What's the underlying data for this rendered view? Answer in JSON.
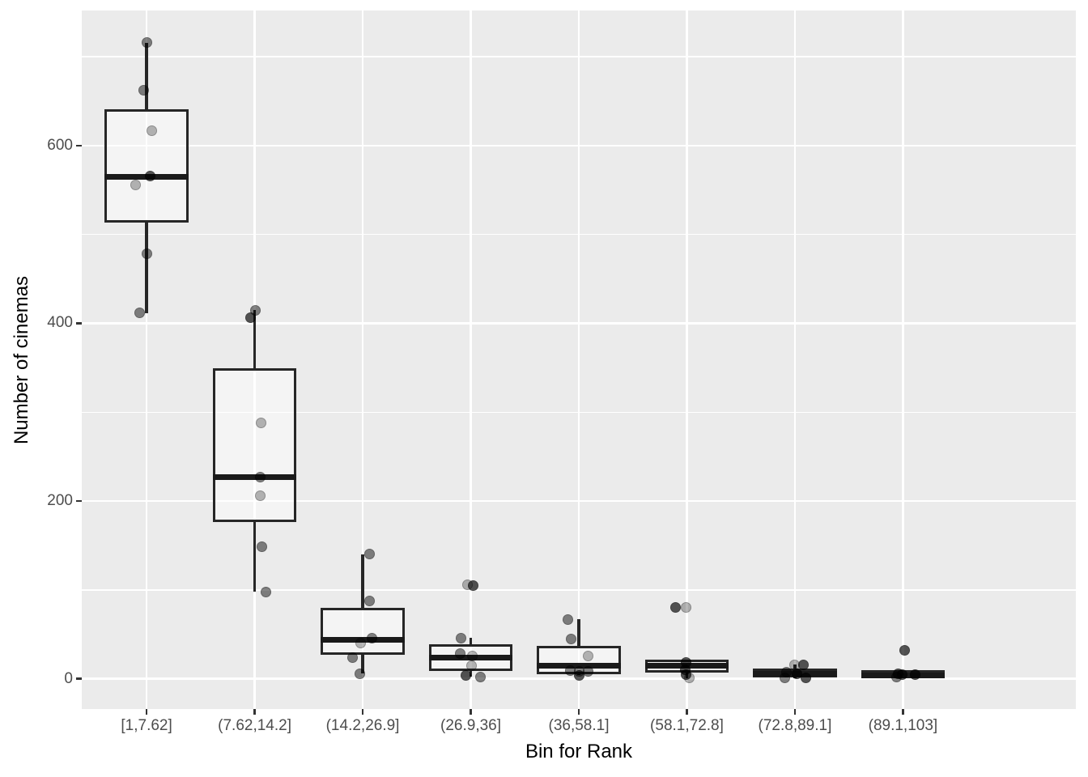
{
  "style": {
    "figure_background": "#FFFFFF",
    "panel_background": "#EBEBEB",
    "grid_color": "#FFFFFF",
    "axis_text_color": "#4D4D4D",
    "axis_title_color": "#000000",
    "box_border_color": "#262626",
    "median_color": "#1A1A1A",
    "box_fill": "rgba(255,255,255,0.45)",
    "point_color": "#000000"
  },
  "chart_data": {
    "type": "boxplot",
    "title": "",
    "xlabel": "Bin for Rank",
    "ylabel": "Number of cinemas",
    "legend": "none",
    "grid": "on",
    "ylim": [
      -34,
      752
    ],
    "yticks": [
      0,
      200,
      400,
      600
    ],
    "ytick_labels": [
      "0",
      "200",
      "400",
      "600"
    ],
    "yminor": [
      100,
      300,
      500,
      700
    ],
    "categories": [
      "[1,7.62]",
      "(7.62,14.2]",
      "(14.2,26.9]",
      "(26.9,36]",
      "(36,58.1]",
      "(58.1,72.8]",
      "(72.8,89.1]",
      "(89.1,103]"
    ],
    "boxes": [
      {
        "category": "[1,7.62]",
        "whisker_low": 411,
        "q1": 515,
        "median": 565,
        "q3": 639,
        "whisker_high": 716,
        "points": [
          {
            "value": 716,
            "dx": 0,
            "shade": "m"
          },
          {
            "value": 662,
            "dx": -4,
            "shade": "m"
          },
          {
            "value": 617,
            "dx": 6,
            "shade": "l"
          },
          {
            "value": 566,
            "dx": 4,
            "shade": "d"
          },
          {
            "value": 556,
            "dx": -14,
            "shade": "l"
          },
          {
            "value": 478,
            "dx": 0,
            "shade": "m"
          },
          {
            "value": 412,
            "dx": -9,
            "shade": "m"
          }
        ]
      },
      {
        "category": "(7.62,14.2]",
        "whisker_low": 98,
        "q1": 178,
        "median": 227,
        "q3": 348,
        "whisker_high": 415,
        "points": [
          {
            "value": 415,
            "dx": 1,
            "shade": "m"
          },
          {
            "value": 406,
            "dx": -5,
            "shade": "d"
          },
          {
            "value": 288,
            "dx": 8,
            "shade": "l"
          },
          {
            "value": 227,
            "dx": 7,
            "shade": "m"
          },
          {
            "value": 206,
            "dx": 7,
            "shade": "l"
          },
          {
            "value": 149,
            "dx": 9,
            "shade": "m"
          },
          {
            "value": 98,
            "dx": 14,
            "shade": "m"
          }
        ]
      },
      {
        "category": "(14.2,26.9]",
        "whisker_low": 6,
        "q1": 29,
        "median": 44,
        "q3": 78,
        "whisker_high": 140,
        "points": [
          {
            "value": 140,
            "dx": 8,
            "shade": "m"
          },
          {
            "value": 88,
            "dx": 8,
            "shade": "m"
          },
          {
            "value": 46,
            "dx": 11,
            "shade": "m"
          },
          {
            "value": 40,
            "dx": -3,
            "shade": "l"
          },
          {
            "value": 24,
            "dx": -13,
            "shade": "m"
          },
          {
            "value": 6,
            "dx": -4,
            "shade": "m"
          }
        ]
      },
      {
        "category": "(26.9,36]",
        "whisker_low": 2,
        "q1": 10,
        "median": 24,
        "q3": 37,
        "whisker_high": 46,
        "points": [
          {
            "value": 106,
            "dx": -4,
            "shade": "l"
          },
          {
            "value": 105,
            "dx": 3,
            "shade": "d"
          },
          {
            "value": 46,
            "dx": -12,
            "shade": "m"
          },
          {
            "value": 28,
            "dx": -13,
            "shade": "m"
          },
          {
            "value": 26,
            "dx": 2,
            "shade": "l"
          },
          {
            "value": 15,
            "dx": 1,
            "shade": "l"
          },
          {
            "value": 4,
            "dx": -6,
            "shade": "d"
          },
          {
            "value": 2,
            "dx": 12,
            "shade": "m"
          }
        ]
      },
      {
        "category": "(36,58.1]",
        "whisker_low": 4,
        "q1": 7,
        "median": 15,
        "q3": 35,
        "whisker_high": 67,
        "points": [
          {
            "value": 67,
            "dx": -14,
            "shade": "m"
          },
          {
            "value": 45,
            "dx": -10,
            "shade": "m"
          },
          {
            "value": 26,
            "dx": 11,
            "shade": "l"
          },
          {
            "value": 9,
            "dx": -11,
            "shade": "m"
          },
          {
            "value": 8,
            "dx": 0,
            "shade": "m"
          },
          {
            "value": 8,
            "dx": 11,
            "shade": "m"
          },
          {
            "value": 4,
            "dx": 0,
            "shade": "d"
          }
        ]
      },
      {
        "category": "(58.1,72.8]",
        "whisker_low": 1,
        "q1": 9,
        "median": 15,
        "q3": 20,
        "whisker_high": 20,
        "points": [
          {
            "value": 80,
            "dx": -14,
            "shade": "d"
          },
          {
            "value": 80,
            "dx": -1,
            "shade": "l"
          },
          {
            "value": 18,
            "dx": -1,
            "shade": "d"
          },
          {
            "value": 10,
            "dx": -2,
            "shade": "d"
          },
          {
            "value": 5,
            "dx": -1,
            "shade": "d"
          },
          {
            "value": 1,
            "dx": 3,
            "shade": "l"
          }
        ]
      },
      {
        "category": "(72.8,89.1]",
        "whisker_low": 1,
        "q1": 3,
        "median": 6,
        "q3": 10,
        "whisker_high": 16,
        "points": [
          {
            "value": 16,
            "dx": 0,
            "shade": "l"
          },
          {
            "value": 16,
            "dx": 11,
            "shade": "d"
          },
          {
            "value": 7,
            "dx": -10,
            "shade": "m"
          },
          {
            "value": 6,
            "dx": 3,
            "shade": "d"
          },
          {
            "value": 1,
            "dx": -12,
            "shade": "m"
          },
          {
            "value": 1,
            "dx": 14,
            "shade": "d"
          }
        ]
      },
      {
        "category": "(89.1,103]",
        "whisker_low": 1,
        "q1": 2,
        "median": 4,
        "q3": 8,
        "whisker_high": 8,
        "points": [
          {
            "value": 32,
            "dx": 2,
            "shade": "d"
          },
          {
            "value": 6,
            "dx": -6,
            "shade": "d"
          },
          {
            "value": 5,
            "dx": -1,
            "shade": "d"
          },
          {
            "value": 5,
            "dx": 15,
            "shade": "d"
          },
          {
            "value": 2,
            "dx": -8,
            "shade": "m"
          }
        ]
      }
    ]
  }
}
